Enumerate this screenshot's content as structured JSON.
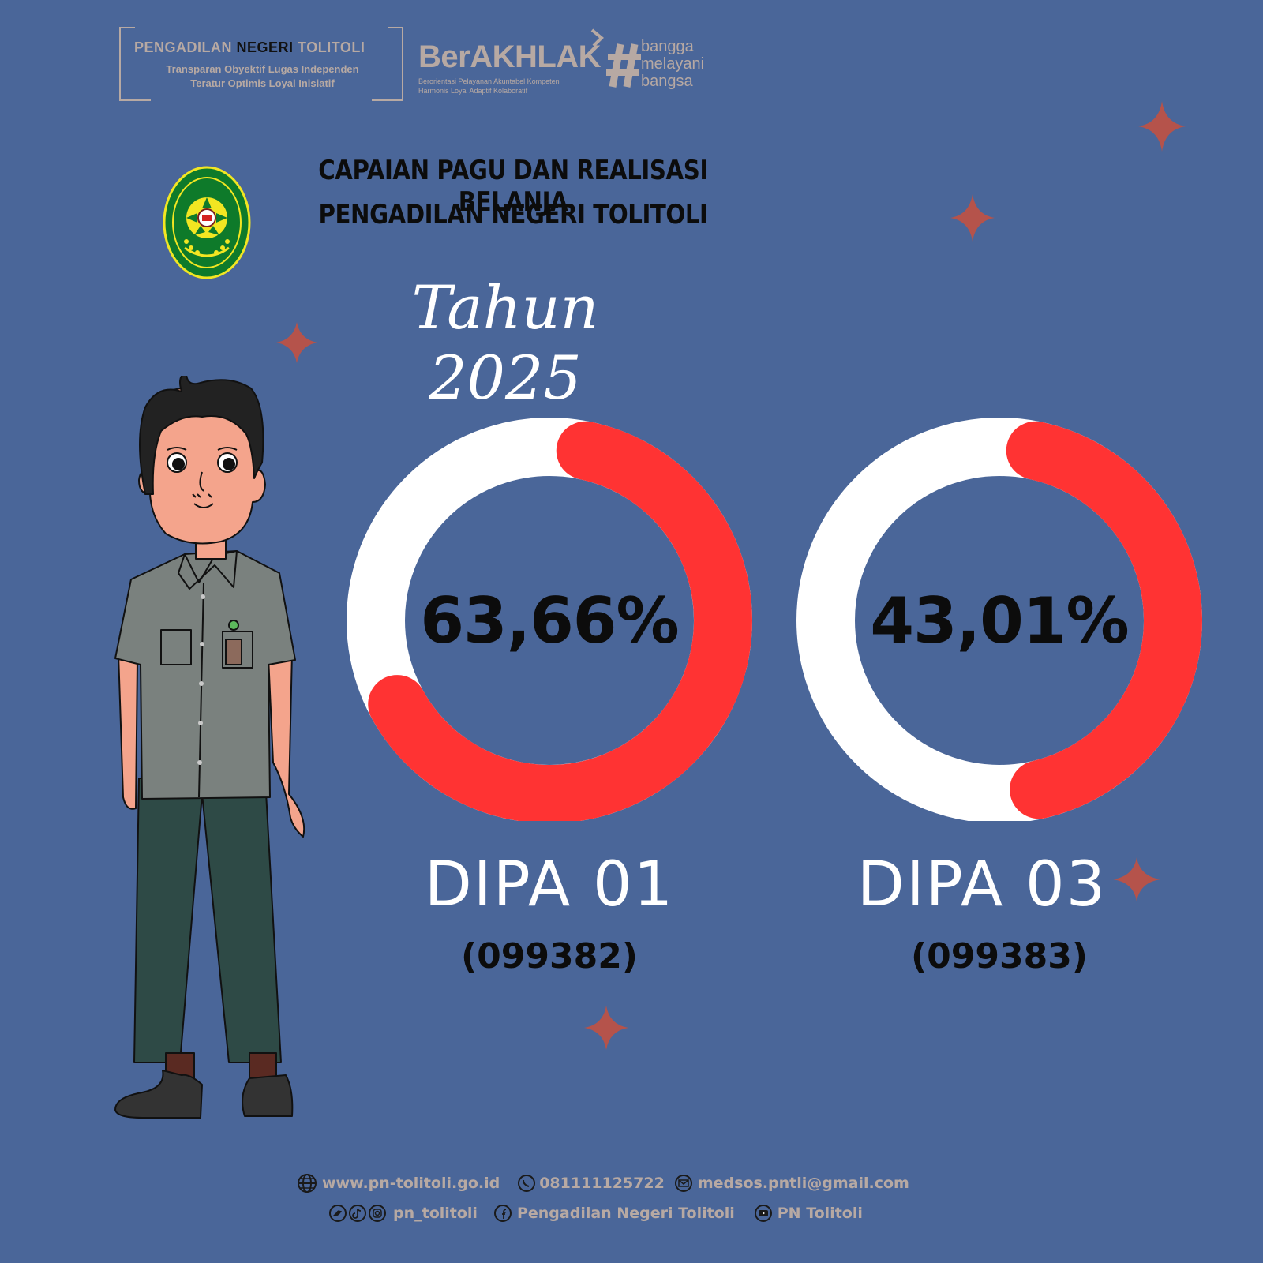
{
  "header": {
    "court_name_pre": "PENGADILAN ",
    "court_name_bold": "NEGERI",
    "court_name_post": " TOLITOLI",
    "motto_line1": "Transparan Obyektif Lugas Independen",
    "motto_line2": "Teratur Optimis Loyal Inisiatif",
    "berakhlak": "BerAKHLAK",
    "berakhlak_sub1": "Berorientasi Pelayanan Akuntabel Kompeten",
    "berakhlak_sub2": "Harmonis Loyal Adaptif Kolaboratif",
    "hashtag_line1": "bangga",
    "hashtag_line2": "melayani",
    "hashtag_line3": "bangsa"
  },
  "title": {
    "line1": "CAPAIAN PAGU DAN  REALISASI BELANJA",
    "line2": "PENGADILAN NEGERI TOLITOLI",
    "year": "Tahun 2025"
  },
  "chart_data": [
    {
      "type": "pie",
      "donut": true,
      "name": "DIPA 01",
      "code": "(099382)",
      "value": 63.66,
      "label": "63,66%",
      "colors": {
        "filled": "#ff3333",
        "remaining": "#ffffff"
      }
    },
    {
      "type": "pie",
      "donut": true,
      "name": "DIPA 03",
      "code": "(099383)",
      "value": 43.01,
      "label": "43,01%",
      "colors": {
        "filled": "#ff3333",
        "remaining": "#ffffff"
      }
    }
  ],
  "footer": {
    "website": "www.pn-tolitoli.go.id",
    "whatsapp": "081111125722",
    "email": "medsos.pntli@gmail.com",
    "social_handle": "pn_tolitoli",
    "facebook": "Pengadilan Negeri Tolitoli",
    "youtube": "PN Tolitoli"
  },
  "colors": {
    "background": "#4a6699",
    "accent": "#ff3333",
    "sparkle": "#b5534b",
    "muted": "#b7a9a3"
  }
}
